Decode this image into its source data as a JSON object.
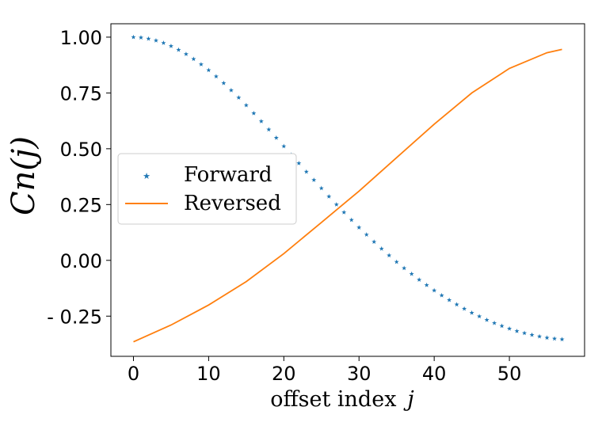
{
  "chart_data": {
    "type": "line",
    "title": "",
    "xlabel": "offset index",
    "xlabel_var": "j",
    "ylabel": "Cn(j)",
    "xlim": [
      -3,
      60
    ],
    "ylim": [
      -0.43,
      1.06
    ],
    "grid": false,
    "xticks": [
      0,
      10,
      20,
      30,
      40,
      50
    ],
    "xtick_labels": [
      "0",
      "10",
      "20",
      "30",
      "40",
      "50"
    ],
    "yticks": [
      1.0,
      0.75,
      0.5,
      0.25,
      0.0,
      -0.25
    ],
    "ytick_labels": [
      "1.00",
      "0.75",
      "0.50",
      "0.25",
      "0.00",
      "- 0.25"
    ],
    "legend_position": "center-left",
    "series": [
      {
        "name": "Forward",
        "style": "star-markers",
        "color": "#1f77b4",
        "x": [
          0,
          1,
          2,
          3,
          4,
          5,
          6,
          7,
          8,
          9,
          10,
          11,
          12,
          13,
          14,
          15,
          16,
          17,
          18,
          19,
          20,
          21,
          22,
          23,
          24,
          25,
          26,
          27,
          28,
          29,
          30,
          31,
          32,
          33,
          34,
          35,
          36,
          37,
          38,
          39,
          40,
          41,
          42,
          43,
          44,
          45,
          46,
          47,
          48,
          49,
          50,
          51,
          52,
          53,
          54,
          55,
          56,
          57
        ],
        "values": [
          1.0,
          0.998,
          0.993,
          0.985,
          0.974,
          0.96,
          0.943,
          0.924,
          0.902,
          0.878,
          0.852,
          0.824,
          0.794,
          0.762,
          0.729,
          0.695,
          0.659,
          0.623,
          0.586,
          0.549,
          0.511,
          0.473,
          0.435,
          0.397,
          0.36,
          0.323,
          0.286,
          0.25,
          0.215,
          0.181,
          0.147,
          0.115,
          0.083,
          0.052,
          0.022,
          -0.007,
          -0.035,
          -0.061,
          -0.087,
          -0.111,
          -0.135,
          -0.157,
          -0.178,
          -0.198,
          -0.217,
          -0.235,
          -0.251,
          -0.267,
          -0.281,
          -0.294,
          -0.306,
          -0.317,
          -0.326,
          -0.334,
          -0.341,
          -0.347,
          -0.351,
          -0.354
        ]
      },
      {
        "name": "Reversed",
        "style": "line",
        "color": "#ff7f0e",
        "x": [
          0,
          5,
          10,
          15,
          20,
          25,
          30,
          35,
          40,
          45,
          50,
          55,
          57
        ],
        "values": [
          -0.365,
          -0.29,
          -0.2,
          -0.095,
          0.03,
          0.17,
          0.31,
          0.46,
          0.61,
          0.75,
          0.86,
          0.93,
          0.945
        ]
      }
    ]
  }
}
